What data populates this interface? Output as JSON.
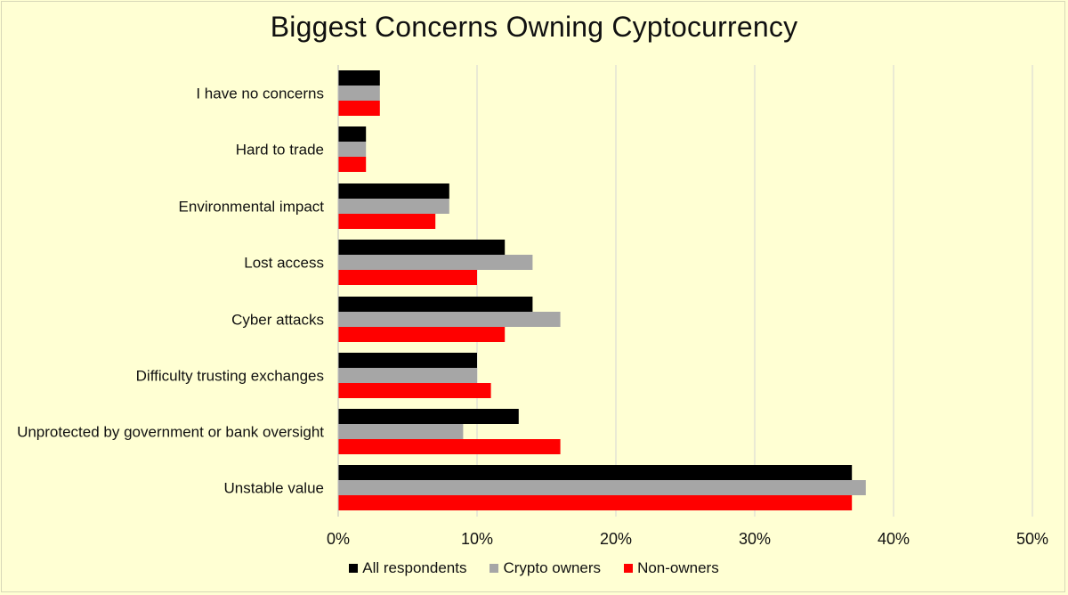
{
  "chart_data": {
    "type": "bar",
    "orientation": "horizontal",
    "title": "Biggest Concerns Owning Cyptocurrency",
    "categories": [
      "I have no concerns",
      "Hard to trade",
      "Environmental impact",
      "Lost access",
      "Cyber attacks",
      "Difficulty trusting exchanges",
      "Unprotected by government or bank oversight",
      "Unstable value"
    ],
    "series": [
      {
        "name": "All respondents",
        "color": "#000000",
        "values": [
          3,
          2,
          8,
          12,
          14,
          10,
          13,
          37
        ]
      },
      {
        "name": "Crypto owners",
        "color": "#a6a6a6",
        "values": [
          3,
          2,
          8,
          14,
          16,
          10,
          9,
          38
        ]
      },
      {
        "name": "Non-owners",
        "color": "#ff0000",
        "values": [
          3,
          2,
          7,
          10,
          12,
          11,
          16,
          37
        ]
      }
    ],
    "xlim": [
      0,
      50
    ],
    "x_ticks": [
      "0%",
      "10%",
      "20%",
      "30%",
      "40%",
      "50%"
    ],
    "xlabel": "",
    "ylabel": "",
    "grid": "vertical",
    "legend_position": "bottom"
  }
}
